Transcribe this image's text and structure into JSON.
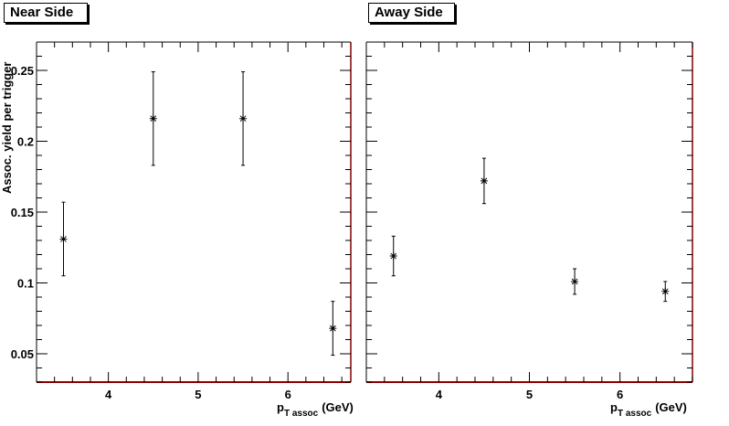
{
  "tabs": {
    "near": "Near Side",
    "away": "Away Side"
  },
  "axes": {
    "ylabel": "Assoc. yield per trigger",
    "xlabel_main": "p",
    "xlabel_sub": "T assoc",
    "xlabel_unit": "(GeV)"
  },
  "chart_data": [
    {
      "type": "scatter",
      "panel": "Near Side",
      "x": [
        3.5,
        4.5,
        5.5,
        6.5
      ],
      "y": [
        0.131,
        0.216,
        0.216,
        0.068
      ],
      "yerr": [
        0.026,
        0.033,
        0.033,
        0.019
      ],
      "xlim": [
        3.2,
        6.7
      ],
      "ylim": [
        0.03,
        0.27
      ],
      "xticks": [
        "4",
        "5",
        "6"
      ],
      "yticks": [
        "0.05",
        "0.1",
        "0.15",
        "0.2",
        "0.25"
      ],
      "grid": false
    },
    {
      "type": "scatter",
      "panel": "Away Side",
      "x": [
        3.5,
        4.5,
        5.5,
        6.5
      ],
      "y": [
        0.119,
        0.172,
        0.101,
        0.094
      ],
      "yerr": [
        0.014,
        0.016,
        0.009,
        0.007
      ],
      "xlim": [
        3.2,
        6.8
      ],
      "ylim": [
        0.03,
        0.27
      ],
      "xticks": [
        "4",
        "5",
        "6"
      ],
      "grid": false
    }
  ]
}
